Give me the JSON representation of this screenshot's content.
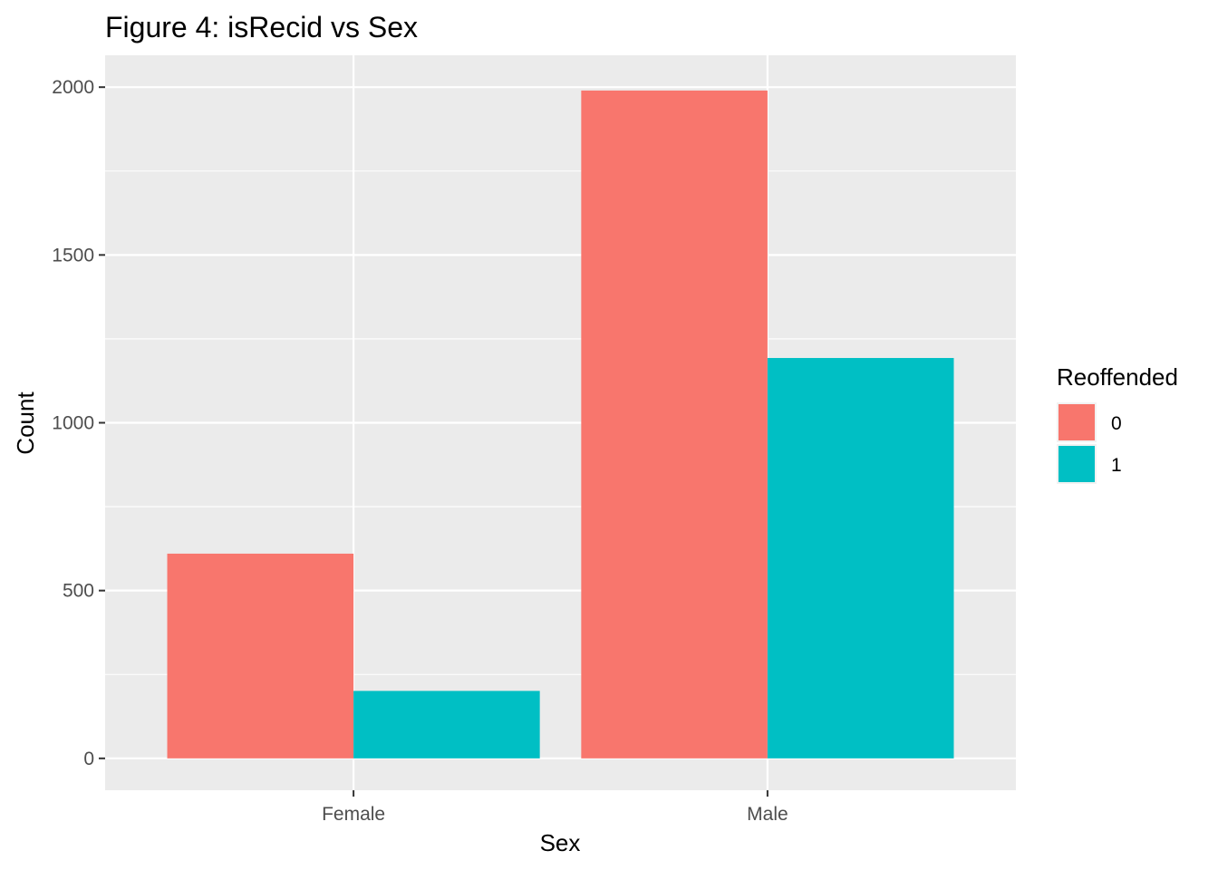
{
  "chart_data": {
    "type": "bar",
    "title": "Figure 4: isRecid vs Sex",
    "xlabel": "Sex",
    "ylabel": "Count",
    "categories": [
      "Female",
      "Male"
    ],
    "series": [
      {
        "name": "0",
        "values": [
          610,
          1990
        ],
        "color": "#F8766D"
      },
      {
        "name": "1",
        "values": [
          201,
          1193
        ],
        "color": "#00BFC4"
      }
    ],
    "ylim": [
      -95,
      2095
    ],
    "yticks": [
      0,
      500,
      1000,
      1500,
      2000
    ],
    "ytick_labels": [
      "0",
      "500",
      "1000",
      "1500",
      "2000"
    ],
    "grid": true,
    "panel_background": "#EBEBEB",
    "legend": {
      "title": "Reoffended",
      "position": "right",
      "entries": [
        "0",
        "1"
      ]
    }
  }
}
